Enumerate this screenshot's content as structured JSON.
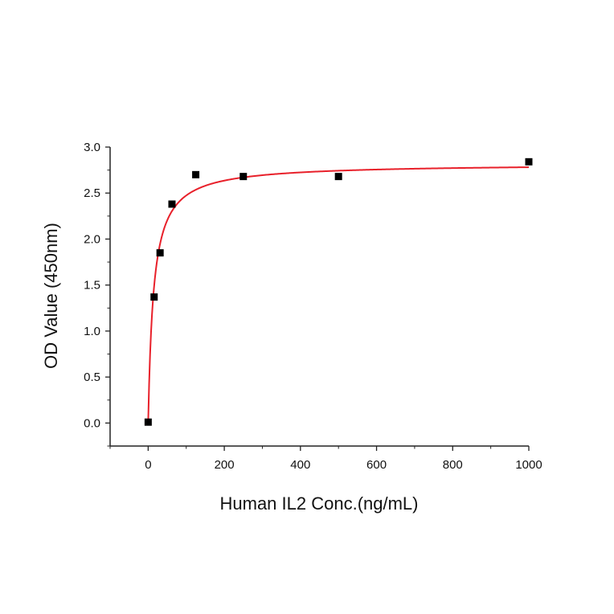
{
  "chart_data": {
    "type": "scatter",
    "title": "",
    "xlabel": "Human IL2 Conc.(ng/mL)",
    "ylabel": "OD Value (450nm)",
    "xlim": [
      -100,
      1000
    ],
    "ylim": [
      -0.25,
      3.0
    ],
    "x_ticks": [
      0,
      200,
      400,
      600,
      800,
      1000
    ],
    "x_tick_labels": [
      "0",
      "200",
      "400",
      "600",
      "800",
      "1000"
    ],
    "y_ticks": [
      0.0,
      0.5,
      1.0,
      1.5,
      2.0,
      2.5,
      3.0
    ],
    "y_tick_labels": [
      "0.0",
      "0.5",
      "1.0",
      "1.5",
      "2.0",
      "2.5",
      "3.0"
    ],
    "grid": false,
    "series": [
      {
        "points": [
          {
            "x": 0,
            "y": 0.01
          },
          {
            "x": 15.6,
            "y": 1.37
          },
          {
            "x": 31.25,
            "y": 1.85
          },
          {
            "x": 62.5,
            "y": 2.38
          },
          {
            "x": 125,
            "y": 2.7
          },
          {
            "x": 250,
            "y": 2.68
          },
          {
            "x": 500,
            "y": 2.68
          },
          {
            "x": 1000,
            "y": 2.84
          }
        ],
        "marker": "square",
        "color": "#000000"
      }
    ],
    "fit_curve": {
      "model": "hyperbolic",
      "bmax": 2.82,
      "kd": 14,
      "color": "#e8202a"
    }
  }
}
